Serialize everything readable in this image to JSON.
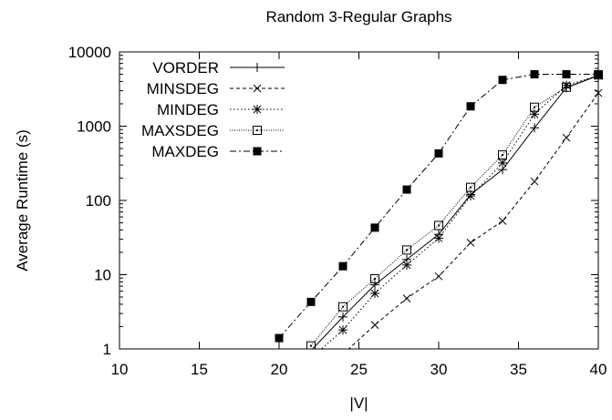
{
  "chart_data": {
    "type": "line",
    "title": "Random 3-Regular Graphs",
    "xlabel": "|V|",
    "ylabel": "Average Runtime (s)",
    "xlim": [
      10,
      40
    ],
    "ylim": [
      1,
      10000
    ],
    "yscale": "log",
    "grid": false,
    "legend_position": "top-left",
    "x_ticks": [
      10,
      15,
      20,
      25,
      30,
      35,
      40
    ],
    "y_ticks": [
      1,
      10,
      100,
      1000,
      10000
    ],
    "x_tick_labels": [
      "10",
      "15",
      "20",
      "25",
      "30",
      "35",
      "40"
    ],
    "y_tick_labels": [
      "1",
      "10",
      "100",
      "1000",
      "10000"
    ],
    "series": [
      {
        "name": "VORDER",
        "marker": "plus",
        "line": "solid",
        "x": [
          22,
          24,
          26,
          28,
          30,
          32,
          34,
          36,
          38,
          40
        ],
        "y": [
          0.95,
          2.7,
          7.3,
          16,
          35,
          120,
          260,
          950,
          3300,
          4800
        ]
      },
      {
        "name": "MINSDEG",
        "marker": "cross",
        "line": "dashed",
        "x": [
          24,
          26,
          28,
          30,
          32,
          34,
          36,
          38,
          40
        ],
        "y": [
          0.85,
          2.1,
          4.8,
          9.5,
          27,
          53,
          180,
          700,
          2800
        ]
      },
      {
        "name": "MINDEG",
        "marker": "asterisk",
        "line": "dotted",
        "x": [
          22,
          24,
          26,
          28,
          30,
          32,
          34,
          36,
          38,
          40
        ],
        "y": [
          0.75,
          1.8,
          5.6,
          13.5,
          31,
          115,
          320,
          1450,
          3550,
          4800
        ]
      },
      {
        "name": "MAXSDEG",
        "marker": "open-square",
        "line": "fine-dotted",
        "x": [
          22,
          24,
          26,
          28,
          30,
          32,
          34,
          36,
          38,
          40
        ],
        "y": [
          1.1,
          3.7,
          8.8,
          21.5,
          46,
          150,
          410,
          1800,
          3350,
          4900
        ]
      },
      {
        "name": "MAXDEG",
        "marker": "filled-square",
        "line": "dash-dot",
        "x": [
          20,
          22,
          24,
          26,
          28,
          30,
          32,
          34,
          36,
          38,
          40
        ],
        "y": [
          1.4,
          4.3,
          13,
          43,
          140,
          430,
          1850,
          4200,
          5000,
          5000,
          5000
        ]
      }
    ]
  }
}
